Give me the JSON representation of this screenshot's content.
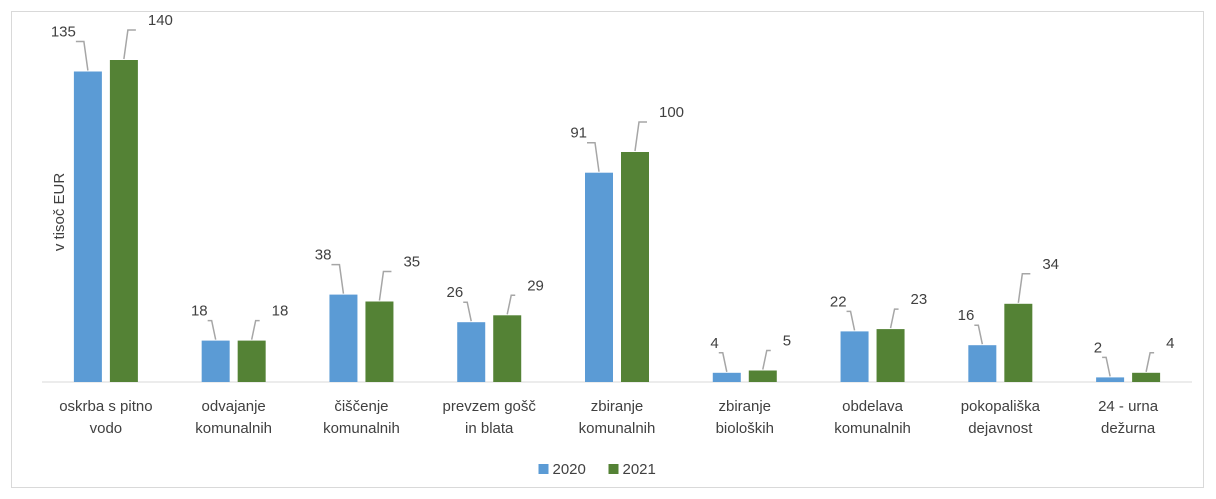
{
  "chart_data": {
    "type": "bar",
    "title": "",
    "xlabel": "",
    "ylabel": "v tisoč EUR",
    "ylim": [
      0,
      150
    ],
    "grid": false,
    "legend_position": "bottom",
    "categories": [
      [
        "oskrba s pitno",
        "vodo"
      ],
      [
        "odvajanje",
        "komunalnih"
      ],
      [
        "čiščenje",
        "komunalnih"
      ],
      [
        "prevzem gošč",
        "in blata"
      ],
      [
        "zbiranje",
        "komunalnih"
      ],
      [
        "zbiranje",
        "bioloških"
      ],
      [
        "obdelava",
        "komunalnih"
      ],
      [
        "pokopališka",
        "dejavnost"
      ],
      [
        "24 - urna",
        "dežurna"
      ]
    ],
    "series": [
      {
        "name": "2020",
        "color": "#5b9bd5",
        "values": [
          135,
          18,
          38,
          26,
          91,
          4,
          22,
          16,
          2
        ]
      },
      {
        "name": "2021",
        "color": "#548235",
        "values": [
          140,
          18,
          35,
          29,
          100,
          5,
          23,
          34,
          4
        ]
      }
    ]
  }
}
